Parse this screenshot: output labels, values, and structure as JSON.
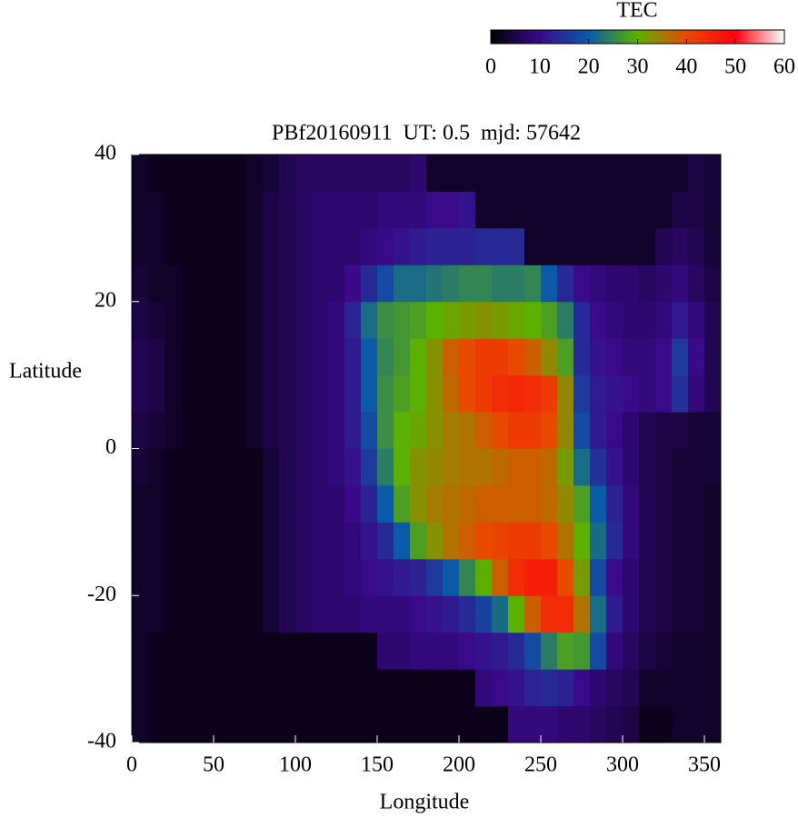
{
  "chart_data": {
    "type": "heatmap",
    "title": "PBf20160911  UT: 0.5  mjd: 57642",
    "xlabel": "Longitude",
    "ylabel": "Latitude",
    "xlim": [
      0,
      360
    ],
    "xticks": [
      0,
      50,
      100,
      150,
      200,
      250,
      300,
      350
    ],
    "ylim": [
      -40,
      40
    ],
    "yticks": [
      -40,
      -20,
      0,
      20,
      40
    ],
    "xbins": [
      0,
      10,
      20,
      30,
      40,
      50,
      60,
      70,
      80,
      90,
      100,
      110,
      120,
      130,
      140,
      150,
      160,
      170,
      180,
      190,
      200,
      210,
      220,
      230,
      240,
      250,
      260,
      270,
      280,
      290,
      300,
      310,
      320,
      330,
      340,
      350,
      360
    ],
    "ybins": [
      -40,
      -35,
      -30,
      -25,
      -20,
      -15,
      -10,
      -5,
      0,
      5,
      10,
      15,
      20,
      25,
      30,
      35,
      40
    ],
    "z": [
      [
        3,
        2,
        2,
        2,
        2,
        2,
        2,
        2,
        2,
        2,
        2,
        2,
        2,
        2,
        2,
        2,
        2,
        2,
        2,
        2,
        2,
        2,
        2,
        9,
        9,
        9,
        8,
        8,
        7,
        6,
        5,
        2,
        2,
        3,
        3,
        3
      ],
      [
        3,
        2,
        2,
        2,
        2,
        2,
        2,
        2,
        2,
        2,
        2,
        2,
        2,
        2,
        2,
        2,
        2,
        2,
        2,
        2,
        2,
        9,
        10,
        11,
        13,
        14,
        13,
        10,
        8,
        7,
        6,
        3,
        3,
        3,
        3,
        3
      ],
      [
        3,
        2,
        2,
        2,
        2,
        2,
        2,
        2,
        2,
        2,
        2,
        2,
        2,
        2,
        2,
        8,
        8,
        9,
        9,
        9,
        10,
        11,
        12,
        14,
        18,
        24,
        28,
        27,
        18,
        9,
        7,
        5,
        4,
        3,
        3,
        3
      ],
      [
        3,
        3,
        2,
        2,
        2,
        2,
        2,
        2,
        4,
        6,
        7,
        8,
        8,
        8,
        9,
        9,
        9,
        10,
        11,
        12,
        14,
        17,
        22,
        30,
        38,
        44,
        44,
        36,
        22,
        12,
        8,
        6,
        5,
        4,
        4,
        3
      ],
      [
        3,
        3,
        2,
        2,
        2,
        2,
        2,
        2,
        4,
        6,
        7,
        8,
        8,
        9,
        10,
        11,
        12,
        13,
        16,
        20,
        25,
        30,
        38,
        44,
        46,
        46,
        40,
        32,
        18,
        10,
        8,
        6,
        5,
        4,
        4,
        3
      ],
      [
        3,
        3,
        2,
        2,
        2,
        2,
        2,
        2,
        4,
        6,
        7,
        8,
        8,
        9,
        11,
        14,
        20,
        28,
        33,
        36,
        38,
        40,
        41,
        42,
        42,
        40,
        36,
        30,
        22,
        14,
        9,
        6,
        5,
        4,
        4,
        3
      ],
      [
        3,
        3,
        2,
        2,
        2,
        2,
        2,
        2,
        4,
        6,
        7,
        8,
        8,
        10,
        13,
        20,
        28,
        33,
        35,
        36,
        37,
        38,
        38,
        38,
        38,
        37,
        34,
        28,
        20,
        13,
        9,
        6,
        5,
        4,
        4,
        3
      ],
      [
        4,
        3,
        2,
        2,
        2,
        2,
        2,
        2,
        4,
        6,
        7,
        8,
        9,
        11,
        16,
        24,
        30,
        33,
        34,
        35,
        36,
        36,
        37,
        38,
        38,
        37,
        32,
        22,
        15,
        11,
        8,
        6,
        5,
        4,
        4,
        4
      ],
      [
        5,
        4,
        3,
        2,
        2,
        2,
        2,
        3,
        5,
        6,
        7,
        8,
        9,
        12,
        18,
        26,
        30,
        31,
        33,
        35,
        36,
        38,
        40,
        42,
        42,
        40,
        34,
        18,
        12,
        10,
        8,
        6,
        5,
        5,
        4,
        4
      ],
      [
        6,
        5,
        3,
        2,
        2,
        2,
        2,
        3,
        5,
        6,
        7,
        8,
        9,
        12,
        20,
        26,
        28,
        30,
        33,
        37,
        40,
        42,
        44,
        45,
        44,
        42,
        34,
        16,
        12,
        11,
        10,
        9,
        10,
        15,
        9,
        6
      ],
      [
        6,
        5,
        3,
        2,
        2,
        2,
        2,
        3,
        5,
        6,
        7,
        8,
        9,
        12,
        20,
        25,
        27,
        30,
        33,
        38,
        40,
        42,
        42,
        40,
        38,
        34,
        28,
        14,
        11,
        10,
        9,
        9,
        10,
        16,
        10,
        6
      ],
      [
        5,
        4,
        3,
        2,
        2,
        2,
        2,
        3,
        5,
        6,
        7,
        8,
        9,
        13,
        22,
        26,
        27,
        28,
        30,
        31,
        32,
        33,
        32,
        31,
        30,
        28,
        24,
        14,
        10,
        9,
        8,
        8,
        9,
        12,
        9,
        6
      ],
      [
        4,
        3,
        3,
        2,
        2,
        2,
        2,
        3,
        5,
        6,
        7,
        8,
        8,
        10,
        14,
        18,
        22,
        22,
        23,
        24,
        25,
        25,
        24,
        24,
        25,
        20,
        14,
        10,
        9,
        8,
        8,
        7,
        8,
        9,
        7,
        5
      ],
      [
        3,
        3,
        2,
        2,
        2,
        2,
        2,
        3,
        5,
        6,
        7,
        8,
        8,
        8,
        9,
        10,
        11,
        12,
        13,
        13,
        13,
        14,
        14,
        14,
        3,
        3,
        3,
        3,
        3,
        3,
        3,
        3,
        6,
        7,
        6,
        4
      ],
      [
        3,
        3,
        2,
        2,
        2,
        2,
        2,
        3,
        5,
        6,
        7,
        8,
        8,
        8,
        8,
        9,
        9,
        9,
        10,
        10,
        11,
        3,
        3,
        3,
        3,
        3,
        3,
        3,
        3,
        3,
        3,
        3,
        3,
        5,
        5,
        4
      ],
      [
        3,
        2,
        2,
        2,
        2,
        2,
        2,
        3,
        4,
        6,
        7,
        7,
        7,
        7,
        7,
        7,
        7,
        8,
        3,
        3,
        3,
        3,
        3,
        3,
        3,
        3,
        3,
        3,
        3,
        3,
        3,
        3,
        3,
        3,
        5,
        4
      ]
    ],
    "colorbar": {
      "label": "TEC",
      "lim": [
        0,
        60
      ],
      "ticks": [
        0,
        10,
        20,
        30,
        40,
        50,
        60
      ],
      "colors": [
        "#000000",
        "#3a0a8a",
        "#0a5aa8",
        "#5cb000",
        "#e84a00",
        "#ff0010",
        "#ffffff"
      ]
    }
  }
}
